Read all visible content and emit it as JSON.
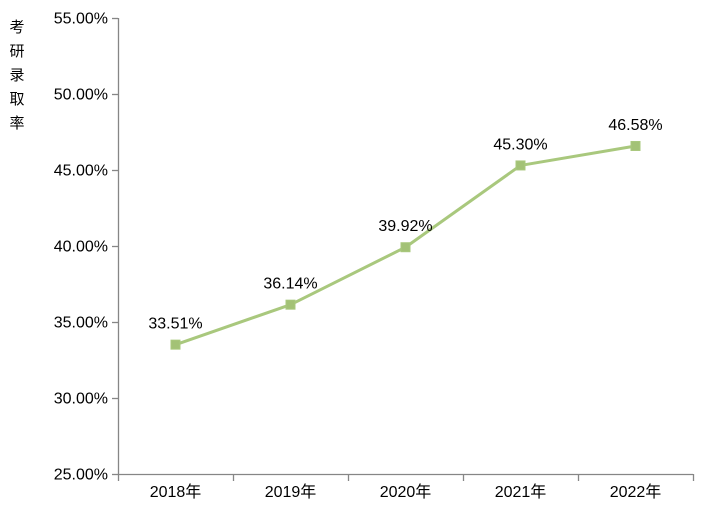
{
  "page": {
    "background": "#ffffff"
  },
  "chart_data": {
    "type": "line",
    "title": "",
    "xlabel": "",
    "ylabel": "考研录取率",
    "categories": [
      "2018年",
      "2019年",
      "2020年",
      "2021年",
      "2022年"
    ],
    "series": [
      {
        "name": "考研录取率",
        "values": [
          33.51,
          36.14,
          39.92,
          45.3,
          46.58
        ]
      }
    ],
    "data_labels": [
      "33.51%",
      "36.14%",
      "39.92%",
      "45.30%",
      "46.58%"
    ],
    "y_ticks": [
      {
        "label": "55.00%",
        "value": 55
      },
      {
        "label": "50.00%",
        "value": 50
      },
      {
        "label": "45.00%",
        "value": 45
      },
      {
        "label": "40.00%",
        "value": 40
      },
      {
        "label": "35.00%",
        "value": 35
      },
      {
        "label": "30.00%",
        "value": 30
      },
      {
        "label": "25.00%",
        "value": 25
      }
    ],
    "ylim": [
      25,
      55
    ],
    "grid": false,
    "legend": "none",
    "marker": "square",
    "colors": {
      "line": "#A9C87D",
      "marker": "#A3C276",
      "axis": "#868686",
      "text": "#000000",
      "background": "#ffffff"
    }
  }
}
